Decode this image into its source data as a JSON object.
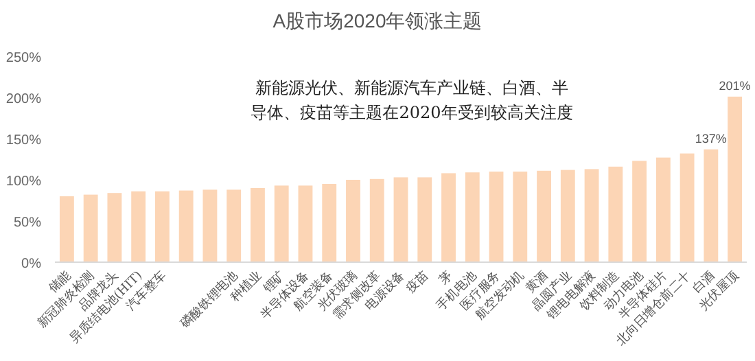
{
  "chart_data": {
    "type": "bar",
    "title": "A股市场2020年领涨主题",
    "categories": [
      "储能",
      "新冠肺炎检测",
      "品牌龙头",
      "异质结电池(HIT)",
      "汽车整车",
      null,
      null,
      "磷酸铁锂电池",
      "种植业",
      "锂矿",
      "半导体设备",
      "航空装备",
      "光伏玻璃",
      "需求侧改革",
      "电源设备",
      "疫苗",
      "茅",
      "手机电池",
      "医疗服务",
      "航空发动机",
      "黄酒",
      "晶圆产业",
      "锂电电解液",
      "饮料制造",
      "动力电池",
      "半导体硅片",
      "北向日增仓前二十",
      "白酒",
      "光伏屋顶"
    ],
    "values": [
      80,
      82,
      84,
      86,
      86,
      87,
      88,
      88,
      90,
      93,
      93,
      95,
      100,
      101,
      103,
      103,
      108,
      109,
      110,
      110,
      111,
      112,
      113,
      116,
      123,
      127,
      132,
      137,
      201
    ],
    "value_labels": [
      null,
      null,
      null,
      null,
      null,
      null,
      null,
      null,
      null,
      null,
      null,
      null,
      null,
      null,
      null,
      null,
      null,
      null,
      null,
      null,
      null,
      null,
      null,
      null,
      null,
      null,
      null,
      "137%",
      "201%"
    ],
    "color": "#fcd5b5",
    "ylim": [
      0,
      250
    ],
    "yticks": [
      {
        "value": 0,
        "label": "0%"
      },
      {
        "value": 50,
        "label": "50%"
      },
      {
        "value": 100,
        "label": "100%"
      },
      {
        "value": 150,
        "label": "150%"
      },
      {
        "value": 200,
        "label": "200%"
      },
      {
        "value": 250,
        "label": "250%"
      }
    ],
    "grid": false,
    "annotations": [
      "新能源光伏、新能源汽车产业链、白酒、半",
      "导体、疫苗等主题在2020年受到较高关注度"
    ]
  }
}
